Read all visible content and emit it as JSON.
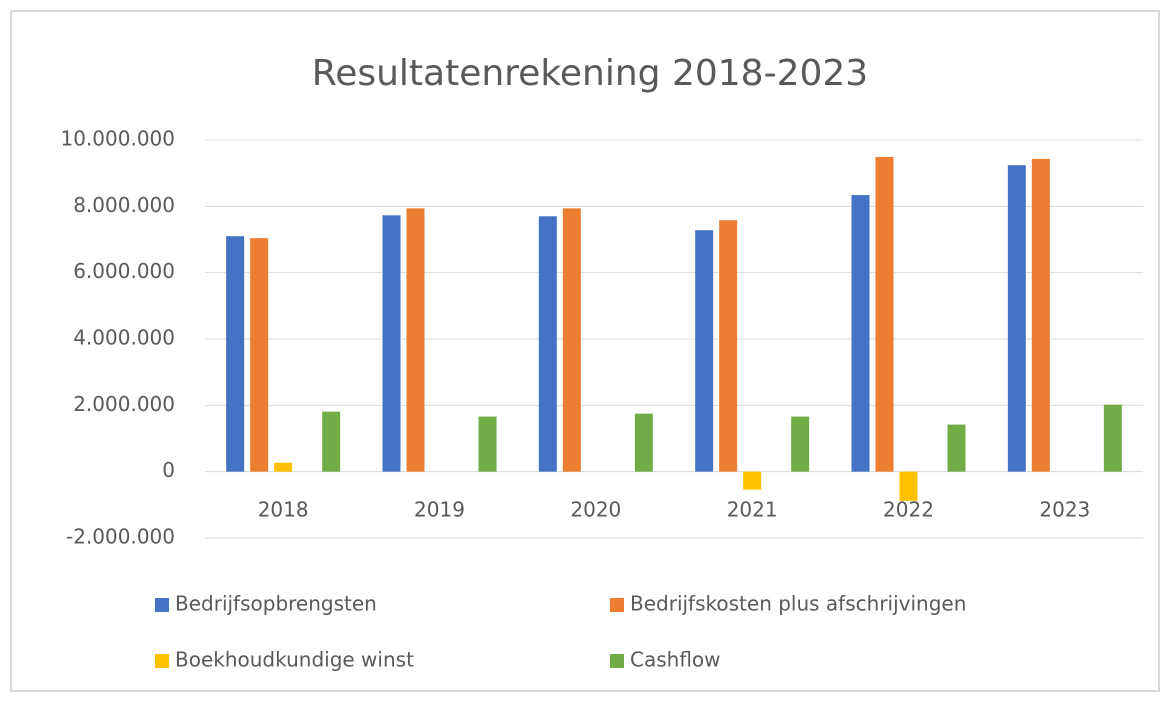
{
  "chart_data": {
    "type": "bar",
    "title": "Resultatenrekening 2018-2023",
    "categories": [
      "2018",
      "2019",
      "2020",
      "2021",
      "2022",
      "2023"
    ],
    "series": [
      {
        "name": "Bedrijfsopbrengsten",
        "color": "#4472c4",
        "values": [
          7100000,
          7730000,
          7700000,
          7280000,
          8340000,
          9240000
        ]
      },
      {
        "name": "Bedrijfskosten plus afschrijvingen",
        "color": "#ed7d31",
        "values": [
          7040000,
          7940000,
          7940000,
          7580000,
          9490000,
          9430000
        ]
      },
      {
        "name": "Boekhoudkundige winst",
        "color": "#ffc000",
        "values": [
          270000,
          0,
          0,
          -540000,
          -880000,
          0
        ]
      },
      {
        "name": "Cashflow",
        "color": "#70ad47",
        "values": [
          1810000,
          1660000,
          1750000,
          1660000,
          1420000,
          2020000
        ]
      }
    ],
    "ylim": [
      -2000000,
      10000000
    ],
    "yticks": [
      {
        "value": -2000000,
        "label": "-2.000.000"
      },
      0,
      {
        "value": 2000000,
        "label": "2.000.000"
      },
      {
        "value": 4000000,
        "label": "4.000.000"
      },
      {
        "value": 6000000,
        "label": "6.000.000"
      },
      {
        "value": 8000000,
        "label": "8.000.000"
      },
      {
        "value": 10000000,
        "label": "10.000.000"
      }
    ],
    "grid": true
  }
}
